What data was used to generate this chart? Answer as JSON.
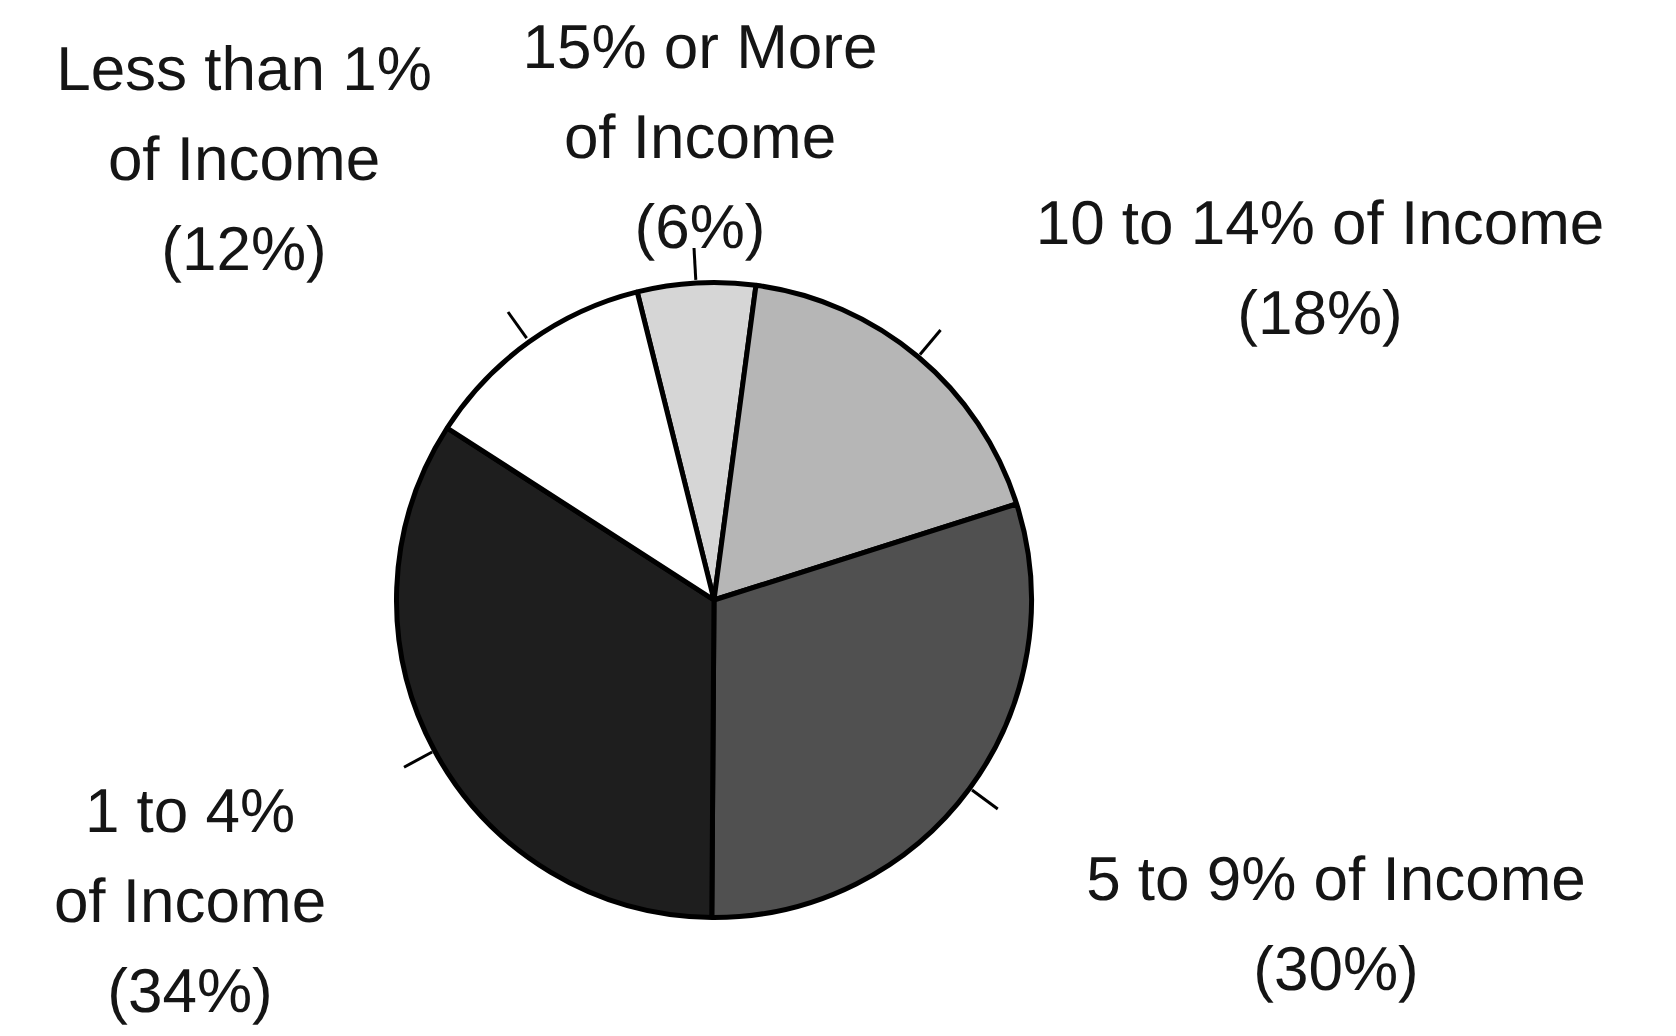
{
  "chart_data": {
    "type": "pie",
    "categories": [
      "15% or More of Income",
      "10 to 14% of Income",
      "5 to 9% of Income",
      "1 to 4% of Income",
      "Less than 1% of Income"
    ],
    "values": [
      6,
      18,
      30,
      34,
      12
    ],
    "colors": [
      "#d6d6d6",
      "#b6b6b6",
      "#505050",
      "#1e1e1e",
      "#ffffff"
    ],
    "value_labels": [
      "(6%)",
      "(18%)",
      "(30%)",
      "(34%)",
      "(12%)"
    ]
  }
}
